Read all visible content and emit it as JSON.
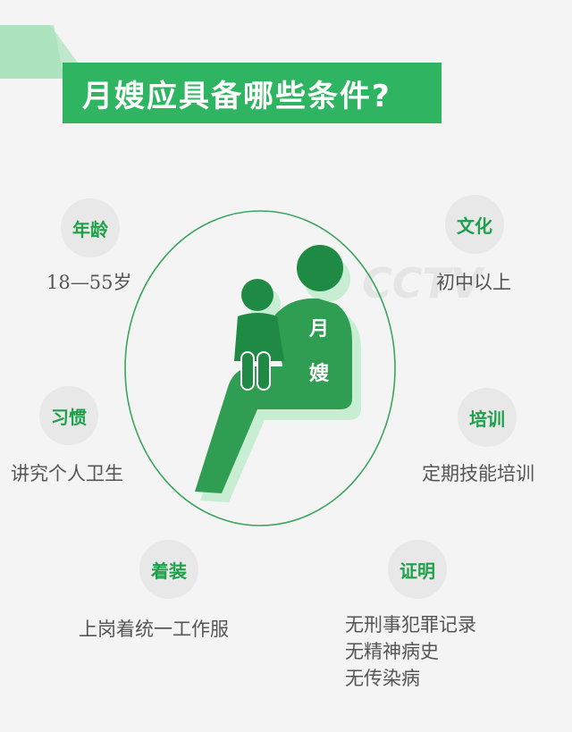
{
  "title": "月嫂应具备哪些条件?",
  "figure_label_1": "月",
  "figure_label_2": "嫂",
  "watermark": "CCTV",
  "colors": {
    "green": "#2fb562",
    "dark_green": "#1e8a44",
    "shadow_green": "#bfe8cc",
    "badge_bg": "#e8e8e8",
    "text": "#555555"
  },
  "items": {
    "age": {
      "label": "年龄",
      "value": "18—55岁"
    },
    "culture": {
      "label": "文化",
      "value": "初中以上"
    },
    "habit": {
      "label": "习惯",
      "value": "讲究个人卫生"
    },
    "training": {
      "label": "培训",
      "value": "定期技能培训"
    },
    "dress": {
      "label": "着装",
      "value": "上岗着统一工作服"
    },
    "proof": {
      "label": "证明",
      "values": [
        "无刑事犯罪记录",
        "无精神病史",
        "无传染病"
      ]
    }
  }
}
